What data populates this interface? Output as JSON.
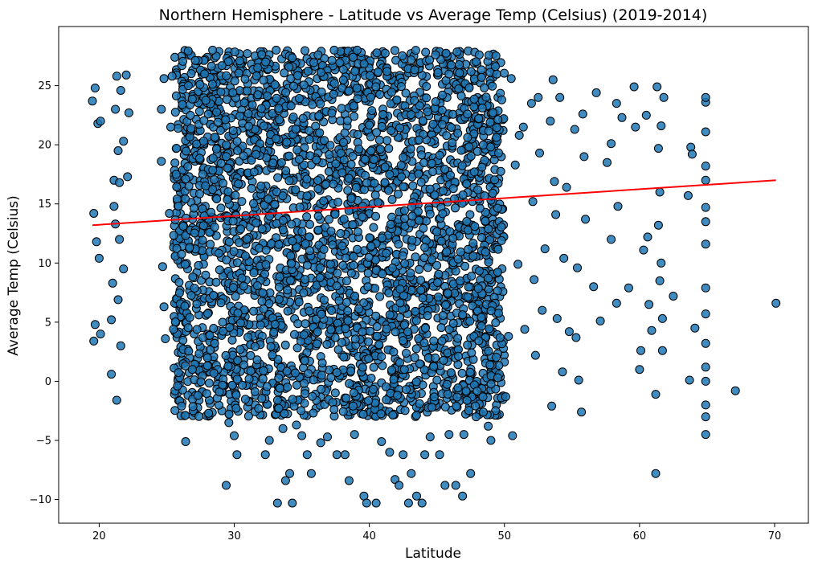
{
  "chart_data": {
    "type": "scatter",
    "title": "Northern Hemisphere - Latitude vs Average Temp (Celsius) (2019-2014)",
    "xlabel": "Latitude",
    "ylabel": "Average Temp (Celsius)",
    "xlim": [
      17,
      72.5
    ],
    "ylim": [
      -12,
      30
    ],
    "xticks": [
      20,
      30,
      40,
      50,
      60,
      70
    ],
    "yticks": [
      -10,
      -5,
      0,
      5,
      10,
      15,
      20,
      25
    ],
    "grid": false,
    "legend": "none",
    "colors": {
      "marker_fill": "#1f77b4",
      "marker_edge": "#000000",
      "regression_line": "#ff0000"
    },
    "regression": {
      "x": [
        19.5,
        70.1
      ],
      "y": [
        13.2,
        17.0
      ]
    },
    "series": [
      {
        "points": [
          [
            19.5,
            23.7
          ],
          [
            19.7,
            24.8
          ],
          [
            19.6,
            14.2
          ],
          [
            19.8,
            11.8
          ],
          [
            19.7,
            4.8
          ],
          [
            19.6,
            3.4
          ],
          [
            19.9,
            21.8
          ],
          [
            20.1,
            22.0
          ],
          [
            20.0,
            10.4
          ],
          [
            20.1,
            4.0
          ],
          [
            20.9,
            0.6
          ],
          [
            20.9,
            5.2
          ],
          [
            21.0,
            8.3
          ],
          [
            21.1,
            17.0
          ],
          [
            21.2,
            23.0
          ],
          [
            21.3,
            -1.6
          ],
          [
            21.3,
            25.8
          ],
          [
            21.4,
            19.5
          ],
          [
            21.5,
            12.0
          ],
          [
            21.6,
            3.0
          ],
          [
            21.6,
            24.6
          ],
          [
            21.8,
            9.5
          ],
          [
            21.8,
            20.3
          ],
          [
            22.0,
            25.9
          ],
          [
            22.1,
            17.3
          ],
          [
            22.2,
            22.7
          ],
          [
            21.2,
            13.3
          ],
          [
            21.4,
            6.9
          ],
          [
            21.1,
            14.8
          ],
          [
            21.5,
            16.8
          ],
          [
            24.6,
            23.0
          ],
          [
            24.6,
            18.6
          ],
          [
            24.7,
            9.7
          ],
          [
            24.8,
            6.3
          ],
          [
            24.9,
            3.6
          ],
          [
            24.8,
            25.6
          ],
          [
            25.2,
            14.2
          ],
          [
            25.4,
            25.8
          ],
          [
            25.3,
            21.5
          ],
          [
            25.5,
            4.4
          ],
          [
            25.6,
            27.4
          ],
          [
            25.8,
            -0.4
          ],
          [
            26.1,
            -2.1
          ],
          [
            26.4,
            -5.1
          ],
          [
            26.6,
            25.0
          ],
          [
            26.9,
            1.0
          ],
          [
            27.3,
            -1.2
          ],
          [
            27.8,
            26.0
          ],
          [
            28.1,
            -2.7
          ],
          [
            28.4,
            28.0
          ],
          [
            28.9,
            -0.9
          ],
          [
            29.4,
            -8.8
          ],
          [
            29.6,
            -3.5
          ],
          [
            30.0,
            -4.6
          ],
          [
            30.2,
            -6.2
          ],
          [
            30.4,
            27.1
          ],
          [
            31.1,
            0.2
          ],
          [
            31.8,
            -2.3
          ],
          [
            32.3,
            -6.2
          ],
          [
            32.6,
            -5.0
          ],
          [
            33.1,
            28.0
          ],
          [
            33.2,
            -10.3
          ],
          [
            33.6,
            -4.0
          ],
          [
            33.8,
            -8.4
          ],
          [
            34.1,
            -7.8
          ],
          [
            34.3,
            -10.3
          ],
          [
            34.6,
            -3.7
          ],
          [
            35.0,
            -4.6
          ],
          [
            35.4,
            -6.2
          ],
          [
            35.7,
            -7.8
          ],
          [
            36.2,
            27.6
          ],
          [
            36.4,
            -5.2
          ],
          [
            36.9,
            -4.7
          ],
          [
            37.4,
            28.0
          ],
          [
            37.6,
            -6.2
          ],
          [
            38.2,
            -6.2
          ],
          [
            38.5,
            -8.4
          ],
          [
            38.9,
            -4.5
          ],
          [
            39.1,
            28.0
          ],
          [
            39.6,
            -9.7
          ],
          [
            39.8,
            -10.3
          ],
          [
            40.5,
            -10.3
          ],
          [
            40.9,
            -5.1
          ],
          [
            41.5,
            -6.0
          ],
          [
            41.9,
            -8.3
          ],
          [
            42.2,
            -8.8
          ],
          [
            42.5,
            -6.2
          ],
          [
            42.9,
            -10.3
          ],
          [
            43.1,
            -7.8
          ],
          [
            43.5,
            -9.7
          ],
          [
            43.9,
            -10.3
          ],
          [
            44.1,
            -6.2
          ],
          [
            44.5,
            -4.7
          ],
          [
            44.9,
            27.6
          ],
          [
            45.2,
            -6.2
          ],
          [
            45.6,
            -8.8
          ],
          [
            45.9,
            -4.5
          ],
          [
            46.4,
            -8.8
          ],
          [
            46.9,
            -9.7
          ],
          [
            47.0,
            -4.5
          ],
          [
            47.5,
            -7.8
          ],
          [
            47.9,
            -3.0
          ],
          [
            48.3,
            25.7
          ],
          [
            48.8,
            -3.8
          ],
          [
            49.0,
            -5.0
          ],
          [
            49.5,
            0.3
          ],
          [
            49.8,
            23.8
          ],
          [
            50.1,
            -1.3
          ],
          [
            50.3,
            3.8
          ],
          [
            50.6,
            -4.6
          ],
          [
            50.5,
            25.6
          ],
          [
            50.8,
            18.3
          ],
          [
            51.1,
            20.8
          ],
          [
            51.0,
            9.9
          ],
          [
            51.4,
            21.5
          ],
          [
            51.5,
            4.4
          ],
          [
            52.0,
            23.5
          ],
          [
            52.1,
            15.2
          ],
          [
            52.2,
            8.6
          ],
          [
            52.3,
            2.2
          ],
          [
            52.5,
            24.0
          ],
          [
            52.6,
            19.3
          ],
          [
            52.8,
            6.0
          ],
          [
            53.0,
            11.2
          ],
          [
            53.4,
            22.0
          ],
          [
            53.5,
            -2.1
          ],
          [
            53.6,
            25.5
          ],
          [
            53.7,
            16.9
          ],
          [
            53.8,
            14.1
          ],
          [
            53.9,
            5.3
          ],
          [
            54.1,
            24.0
          ],
          [
            54.3,
            0.8
          ],
          [
            54.4,
            10.4
          ],
          [
            54.6,
            16.4
          ],
          [
            54.8,
            4.2
          ],
          [
            55.2,
            21.3
          ],
          [
            55.3,
            3.7
          ],
          [
            55.4,
            9.6
          ],
          [
            55.5,
            0.1
          ],
          [
            55.7,
            -2.6
          ],
          [
            55.8,
            22.6
          ],
          [
            55.9,
            19.0
          ],
          [
            56.0,
            13.7
          ],
          [
            56.6,
            8.0
          ],
          [
            56.8,
            24.4
          ],
          [
            57.1,
            5.1
          ],
          [
            57.6,
            18.5
          ],
          [
            57.9,
            12.0
          ],
          [
            57.9,
            20.1
          ],
          [
            58.3,
            23.5
          ],
          [
            58.4,
            14.8
          ],
          [
            58.3,
            6.6
          ],
          [
            58.7,
            22.3
          ],
          [
            59.2,
            7.9
          ],
          [
            59.6,
            24.9
          ],
          [
            59.7,
            21.5
          ],
          [
            60.0,
            1.0
          ],
          [
            60.1,
            2.6
          ],
          [
            60.3,
            11.1
          ],
          [
            60.5,
            22.5
          ],
          [
            60.6,
            12.2
          ],
          [
            60.7,
            6.5
          ],
          [
            60.9,
            4.3
          ],
          [
            61.2,
            -7.8
          ],
          [
            61.2,
            -1.1
          ],
          [
            61.3,
            24.9
          ],
          [
            61.4,
            19.7
          ],
          [
            61.5,
            16.0
          ],
          [
            61.6,
            10.0
          ],
          [
            61.7,
            5.3
          ],
          [
            61.7,
            2.6
          ],
          [
            61.8,
            24.0
          ],
          [
            61.6,
            21.6
          ],
          [
            61.4,
            13.2
          ],
          [
            61.5,
            8.5
          ],
          [
            62.5,
            7.2
          ],
          [
            63.6,
            15.7
          ],
          [
            63.7,
            0.1
          ],
          [
            63.8,
            19.8
          ],
          [
            63.9,
            19.2
          ],
          [
            64.1,
            4.5
          ],
          [
            64.9,
            -4.5
          ],
          [
            64.9,
            -3.0
          ],
          [
            64.9,
            -2.0
          ],
          [
            64.9,
            0.0
          ],
          [
            64.9,
            1.2
          ],
          [
            64.9,
            3.2
          ],
          [
            64.9,
            5.7
          ],
          [
            64.9,
            7.9
          ],
          [
            64.9,
            11.6
          ],
          [
            64.9,
            13.5
          ],
          [
            64.9,
            14.7
          ],
          [
            64.9,
            17.0
          ],
          [
            64.9,
            18.2
          ],
          [
            64.9,
            21.1
          ],
          [
            64.9,
            23.6
          ],
          [
            64.9,
            24.0
          ],
          [
            67.1,
            -0.8
          ],
          [
            70.1,
            6.6
          ]
        ],
        "dense_region": {
          "x": [
            25.5,
            50.0
          ],
          "y": [
            -3.0,
            28.0
          ]
        }
      }
    ]
  }
}
